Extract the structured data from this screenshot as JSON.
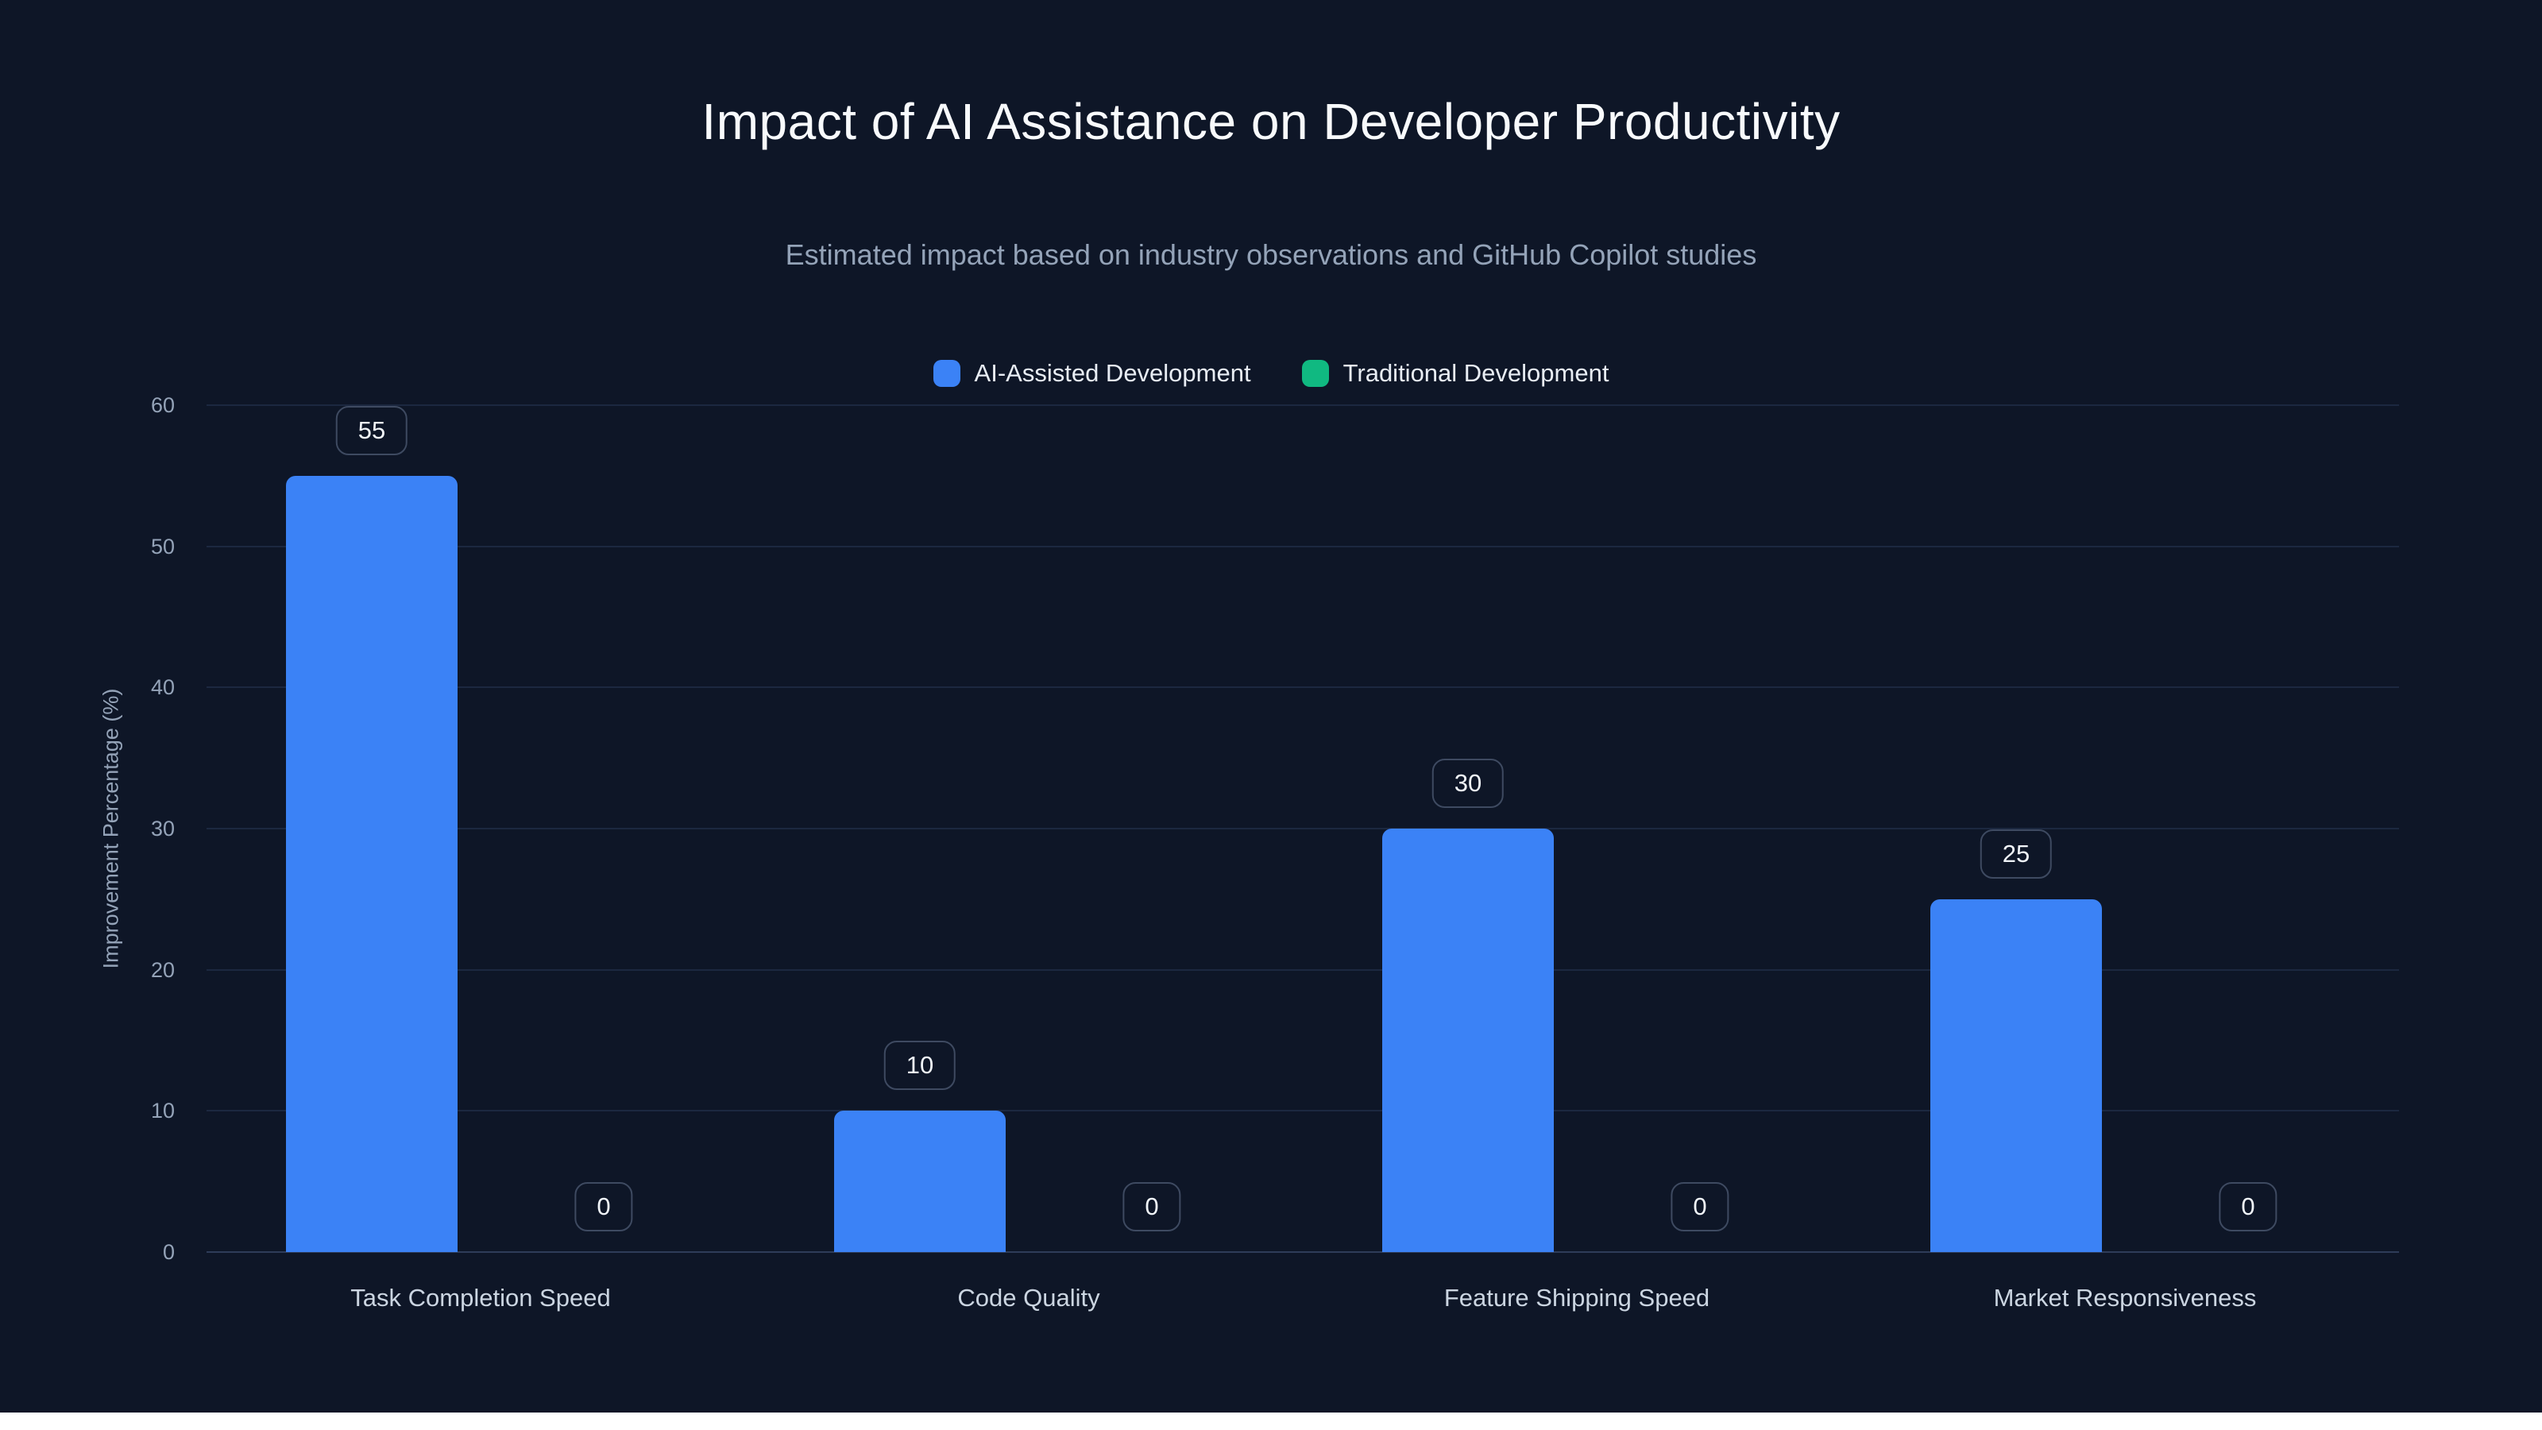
{
  "colors": {
    "background": "#0e1627",
    "title_text": "#f8fafc",
    "subtitle_text": "#94a3b8",
    "axis_text": "#94a3b8",
    "category_text": "#cbd5e1",
    "grid_line": "#1c2840",
    "axis_line": "#2e3c59",
    "badge_border": "#3e4a61",
    "badge_text": "#f1f5f9",
    "ai_series": "#3b82f6",
    "traditional_series": "#10b981",
    "bottom_strip": "#ffffff"
  },
  "chart_data": {
    "type": "bar",
    "title": "Impact of AI Assistance on Developer Productivity",
    "subtitle": "Estimated impact based on industry observations and GitHub Copilot studies",
    "ylabel": "Improvement Percentage (%)",
    "ylim": [
      0,
      60
    ],
    "yticks": [
      0,
      10,
      20,
      30,
      40,
      50,
      60
    ],
    "grid": true,
    "legend_position": "top",
    "value_labels": true,
    "categories": [
      "Task Completion Speed",
      "Code Quality",
      "Feature Shipping Speed",
      "Market Responsiveness"
    ],
    "series": [
      {
        "name": "AI-Assisted Development",
        "color": "#3b82f6",
        "values": [
          55,
          10,
          30,
          25
        ]
      },
      {
        "name": "Traditional Development",
        "color": "#10b981",
        "values": [
          0,
          0,
          0,
          0
        ]
      }
    ]
  }
}
